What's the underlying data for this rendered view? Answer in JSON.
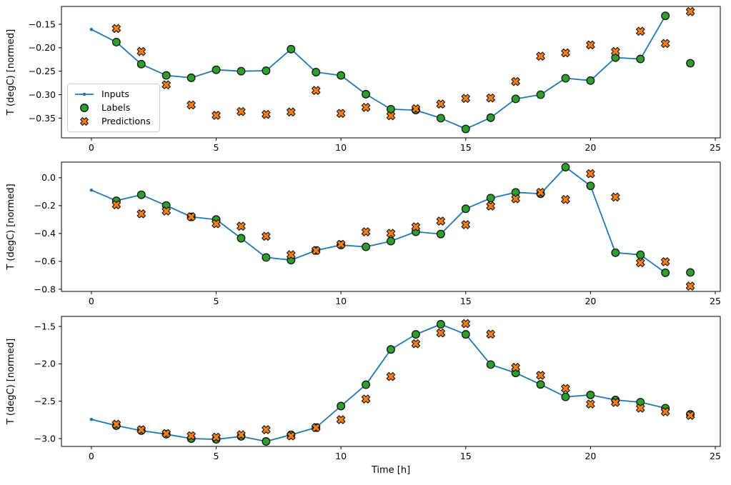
{
  "figure": {
    "xlabel": "Time [h]",
    "ylabel": "T (degC) [normed]"
  },
  "legend": {
    "items": [
      {
        "label": "Inputs",
        "marker": "line-dot-icon"
      },
      {
        "label": "Labels",
        "marker": "circle-icon"
      },
      {
        "label": "Predictions",
        "marker": "x-cross-icon"
      }
    ]
  },
  "colors": {
    "inputs": "#1f77b4",
    "labels": "#2ca02c",
    "predictions": "#ff7f0e",
    "marker_edge": "#111111",
    "spine": "#000000",
    "legend_border": "#cccccc"
  },
  "chart_data": [
    {
      "type": "line",
      "subplot": "top",
      "ylabel": "T (degC) [normed]",
      "xlabel": "",
      "xlim": [
        -1.2,
        25.2
      ],
      "ylim": [
        -0.392,
        -0.112
      ],
      "x_ticks": [
        0,
        5,
        10,
        15,
        20,
        25
      ],
      "y_ticks": [
        -0.15,
        -0.2,
        -0.25,
        -0.3,
        -0.35
      ],
      "y_tick_decimals": 2,
      "show_x_tick_labels": true,
      "series": [
        {
          "name": "Inputs",
          "x": [
            0,
            1,
            2,
            3,
            4,
            5,
            6,
            7,
            8,
            9,
            10,
            11,
            12,
            13,
            14,
            15,
            16,
            17,
            18,
            19,
            20,
            21,
            22,
            23
          ],
          "y": [
            -0.161,
            -0.188,
            -0.235,
            -0.259,
            -0.264,
            -0.247,
            -0.25,
            -0.249,
            -0.203,
            -0.252,
            -0.259,
            -0.299,
            -0.331,
            -0.333,
            -0.35,
            -0.373,
            -0.349,
            -0.309,
            -0.3,
            -0.265,
            -0.27,
            -0.221,
            -0.224,
            -0.132
          ]
        },
        {
          "name": "Labels",
          "x": [
            1,
            2,
            3,
            4,
            5,
            6,
            7,
            8,
            9,
            10,
            11,
            12,
            13,
            14,
            15,
            16,
            17,
            18,
            19,
            20,
            21,
            22,
            23,
            24
          ],
          "y": [
            -0.188,
            -0.235,
            -0.259,
            -0.264,
            -0.247,
            -0.25,
            -0.249,
            -0.203,
            -0.252,
            -0.259,
            -0.299,
            -0.331,
            -0.333,
            -0.35,
            -0.373,
            -0.349,
            -0.309,
            -0.3,
            -0.265,
            -0.27,
            -0.221,
            -0.224,
            -0.132,
            -0.233
          ]
        },
        {
          "name": "Predictions",
          "x": [
            1,
            2,
            3,
            4,
            5,
            6,
            7,
            8,
            9,
            10,
            11,
            12,
            13,
            14,
            15,
            16,
            17,
            18,
            19,
            20,
            21,
            22,
            23,
            24
          ],
          "y": [
            -0.159,
            -0.208,
            -0.279,
            -0.322,
            -0.344,
            -0.336,
            -0.342,
            -0.337,
            -0.291,
            -0.34,
            -0.327,
            -0.345,
            -0.33,
            -0.32,
            -0.308,
            -0.307,
            -0.272,
            -0.218,
            -0.211,
            -0.194,
            -0.208,
            -0.165,
            -0.191,
            -0.123
          ]
        }
      ]
    },
    {
      "type": "line",
      "subplot": "middle",
      "ylabel": "T (degC) [normed]",
      "xlabel": "",
      "xlim": [
        -1.2,
        25.2
      ],
      "ylim": [
        -0.816,
        0.112
      ],
      "x_ticks": [
        0,
        5,
        10,
        15,
        20,
        25
      ],
      "y_ticks": [
        0.0,
        -0.2,
        -0.4,
        -0.6,
        -0.8
      ],
      "y_tick_decimals": 1,
      "show_x_tick_labels": true,
      "series": [
        {
          "name": "Inputs",
          "x": [
            0,
            1,
            2,
            3,
            4,
            5,
            6,
            7,
            8,
            9,
            10,
            11,
            12,
            13,
            14,
            15,
            16,
            17,
            18,
            19,
            20,
            21,
            22,
            23
          ],
          "y": [
            -0.089,
            -0.165,
            -0.122,
            -0.199,
            -0.281,
            -0.3,
            -0.434,
            -0.572,
            -0.591,
            -0.522,
            -0.483,
            -0.496,
            -0.455,
            -0.388,
            -0.404,
            -0.223,
            -0.146,
            -0.105,
            -0.115,
            0.076,
            -0.058,
            -0.538,
            -0.553,
            -0.682
          ]
        },
        {
          "name": "Labels",
          "x": [
            1,
            2,
            3,
            4,
            5,
            6,
            7,
            8,
            9,
            10,
            11,
            12,
            13,
            14,
            15,
            16,
            17,
            18,
            19,
            20,
            21,
            22,
            23,
            24
          ],
          "y": [
            -0.165,
            -0.122,
            -0.199,
            -0.281,
            -0.3,
            -0.434,
            -0.572,
            -0.591,
            -0.522,
            -0.483,
            -0.496,
            -0.455,
            -0.388,
            -0.404,
            -0.223,
            -0.146,
            -0.105,
            -0.115,
            0.076,
            -0.058,
            -0.538,
            -0.553,
            -0.682,
            -0.68
          ]
        },
        {
          "name": "Predictions",
          "x": [
            1,
            2,
            3,
            4,
            5,
            6,
            7,
            8,
            9,
            10,
            11,
            12,
            13,
            14,
            15,
            16,
            17,
            18,
            19,
            20,
            21,
            22,
            23,
            24
          ],
          "y": [
            -0.194,
            -0.259,
            -0.239,
            -0.28,
            -0.33,
            -0.348,
            -0.42,
            -0.553,
            -0.522,
            -0.478,
            -0.388,
            -0.399,
            -0.352,
            -0.311,
            -0.337,
            -0.203,
            -0.151,
            -0.105,
            -0.156,
            0.029,
            -0.139,
            -0.61,
            -0.603,
            -0.778
          ]
        }
      ]
    },
    {
      "type": "line",
      "subplot": "bottom",
      "ylabel": "T (degC) [normed]",
      "xlabel": "Time [h]",
      "xlim": [
        -1.2,
        25.2
      ],
      "ylim": [
        -3.105,
        -1.366
      ],
      "x_ticks": [
        0,
        5,
        10,
        15,
        20,
        25
      ],
      "y_ticks": [
        -1.5,
        -2.0,
        -2.5,
        -3.0
      ],
      "y_tick_decimals": 1,
      "show_x_tick_labels": true,
      "series": [
        {
          "name": "Inputs",
          "x": [
            0,
            1,
            2,
            3,
            4,
            5,
            6,
            7,
            8,
            9,
            10,
            11,
            12,
            13,
            14,
            15,
            16,
            17,
            18,
            19,
            20,
            21,
            22,
            23
          ],
          "y": [
            -2.743,
            -2.827,
            -2.894,
            -2.942,
            -3.0,
            -3.01,
            -2.971,
            -3.038,
            -2.949,
            -2.853,
            -2.565,
            -2.279,
            -1.808,
            -1.606,
            -1.471,
            -1.606,
            -2.01,
            -2.122,
            -2.276,
            -2.442,
            -2.416,
            -2.484,
            -2.513,
            -2.593
          ]
        },
        {
          "name": "Labels",
          "x": [
            1,
            2,
            3,
            4,
            5,
            6,
            7,
            8,
            9,
            10,
            11,
            12,
            13,
            14,
            15,
            16,
            17,
            18,
            19,
            20,
            21,
            22,
            23,
            24
          ],
          "y": [
            -2.827,
            -2.894,
            -2.942,
            -3.0,
            -3.01,
            -2.971,
            -3.038,
            -2.949,
            -2.853,
            -2.565,
            -2.279,
            -1.808,
            -1.606,
            -1.471,
            -1.606,
            -2.01,
            -2.122,
            -2.276,
            -2.442,
            -2.416,
            -2.484,
            -2.513,
            -2.593,
            -2.676
          ]
        },
        {
          "name": "Predictions",
          "x": [
            1,
            2,
            3,
            4,
            5,
            6,
            7,
            8,
            9,
            10,
            11,
            12,
            13,
            14,
            15,
            16,
            17,
            18,
            19,
            20,
            21,
            22,
            23,
            24
          ],
          "y": [
            -2.808,
            -2.882,
            -2.933,
            -2.962,
            -2.981,
            -2.949,
            -2.881,
            -2.965,
            -2.853,
            -2.747,
            -2.471,
            -2.17,
            -1.731,
            -1.587,
            -1.462,
            -1.603,
            -2.048,
            -2.154,
            -2.33,
            -2.538,
            -2.516,
            -2.593,
            -2.641,
            -2.69
          ]
        }
      ]
    }
  ]
}
